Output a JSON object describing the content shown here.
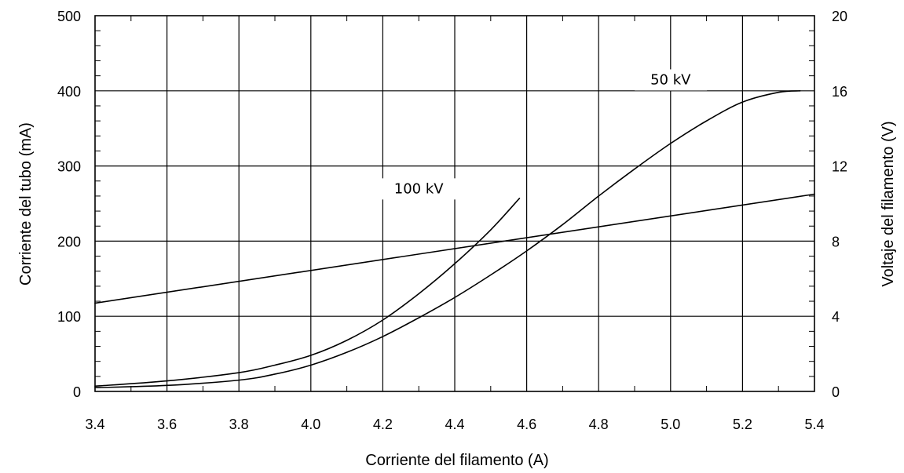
{
  "chart_data": {
    "type": "line",
    "title": "",
    "xlabel": "Corriente del filamento (A)",
    "ylabel_left": "Corriente del tubo (mA)",
    "ylabel_right": "Voltaje del filamento (V)",
    "xlim": [
      3.4,
      5.4
    ],
    "ylim_left": [
      0,
      500
    ],
    "ylim_right": [
      0,
      20
    ],
    "x_ticks": [
      "3.4",
      "3.6",
      "3.8",
      "4.0",
      "4.2",
      "4.4",
      "4.6",
      "4.8",
      "5.0",
      "5.2",
      "5.4"
    ],
    "y_left_ticks": [
      "0",
      "100",
      "200",
      "300",
      "400",
      "500"
    ],
    "y_right_ticks": [
      "0",
      "4",
      "8",
      "12",
      "16",
      "20"
    ],
    "grid": true,
    "series": [
      {
        "name": "100 kV",
        "axis": "left",
        "x": [
          3.4,
          3.6,
          3.8,
          3.9,
          4.0,
          4.1,
          4.2,
          4.3,
          4.4,
          4.5,
          4.58
        ],
        "y": [
          7,
          14,
          25,
          35,
          48,
          68,
          95,
          130,
          170,
          215,
          257
        ]
      },
      {
        "name": "50 kV",
        "axis": "left",
        "x": [
          3.4,
          3.6,
          3.8,
          3.9,
          4.0,
          4.1,
          4.2,
          4.3,
          4.4,
          4.5,
          4.6,
          4.7,
          4.8,
          4.9,
          5.0,
          5.1,
          5.2,
          5.3,
          5.36
        ],
        "y": [
          5,
          8,
          15,
          23,
          35,
          52,
          73,
          98,
          125,
          155,
          187,
          222,
          260,
          296,
          330,
          360,
          385,
          398,
          400
        ]
      },
      {
        "name": "",
        "axis": "right",
        "x": [
          3.4,
          5.4
        ],
        "y": [
          4.7,
          10.5
        ]
      }
    ],
    "annotations": [
      {
        "text": "100 kV",
        "x": 4.3,
        "y": 270
      },
      {
        "text": "50 kV",
        "x": 5.0,
        "y": 415
      }
    ]
  }
}
